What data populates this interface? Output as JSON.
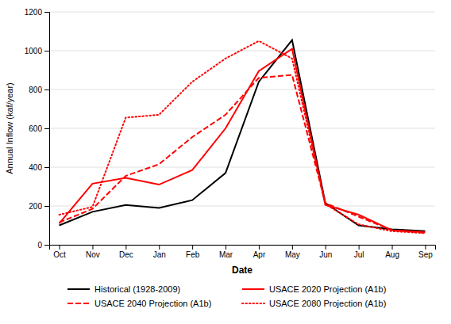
{
  "chart_data": {
    "type": "line",
    "x_label": "Date",
    "y_label": "Annual Inflow (kaf/year)",
    "categories": [
      "Oct",
      "Nov",
      "Dec",
      "Jan",
      "Feb",
      "Mar",
      "Apr",
      "May",
      "Jun",
      "Jul",
      "Aug",
      "Sep"
    ],
    "series": [
      {
        "name": "Historical (1928-2009)",
        "color": "#000000",
        "line_style": "solid",
        "values": [
          100,
          170,
          205,
          190,
          230,
          370,
          840,
          1055,
          215,
          100,
          80,
          70
        ]
      },
      {
        "name": "USACE 2020 Projection (A1b)",
        "color": "#FF0000",
        "line_style": "solid",
        "values": [
          110,
          315,
          345,
          310,
          385,
          600,
          895,
          1010,
          205,
          155,
          75,
          65
        ]
      },
      {
        "name": "USACE 2040 Projection (A1b)",
        "color": "#FF0000",
        "line_style": "dashed",
        "values": [
          115,
          185,
          355,
          415,
          555,
          670,
          860,
          875,
          215,
          145,
          75,
          62
        ]
      },
      {
        "name": "USACE 2080 Projection (A1b)",
        "color": "#FF0000",
        "line_style": "dotted",
        "values": [
          155,
          195,
          655,
          670,
          840,
          960,
          1050,
          960,
          210,
          105,
          70,
          60
        ]
      }
    ],
    "ylim": [
      0,
      1200
    ],
    "yticks": [
      0,
      200,
      400,
      600,
      800,
      1000,
      1200
    ],
    "grid": true,
    "legend": "bottom"
  }
}
